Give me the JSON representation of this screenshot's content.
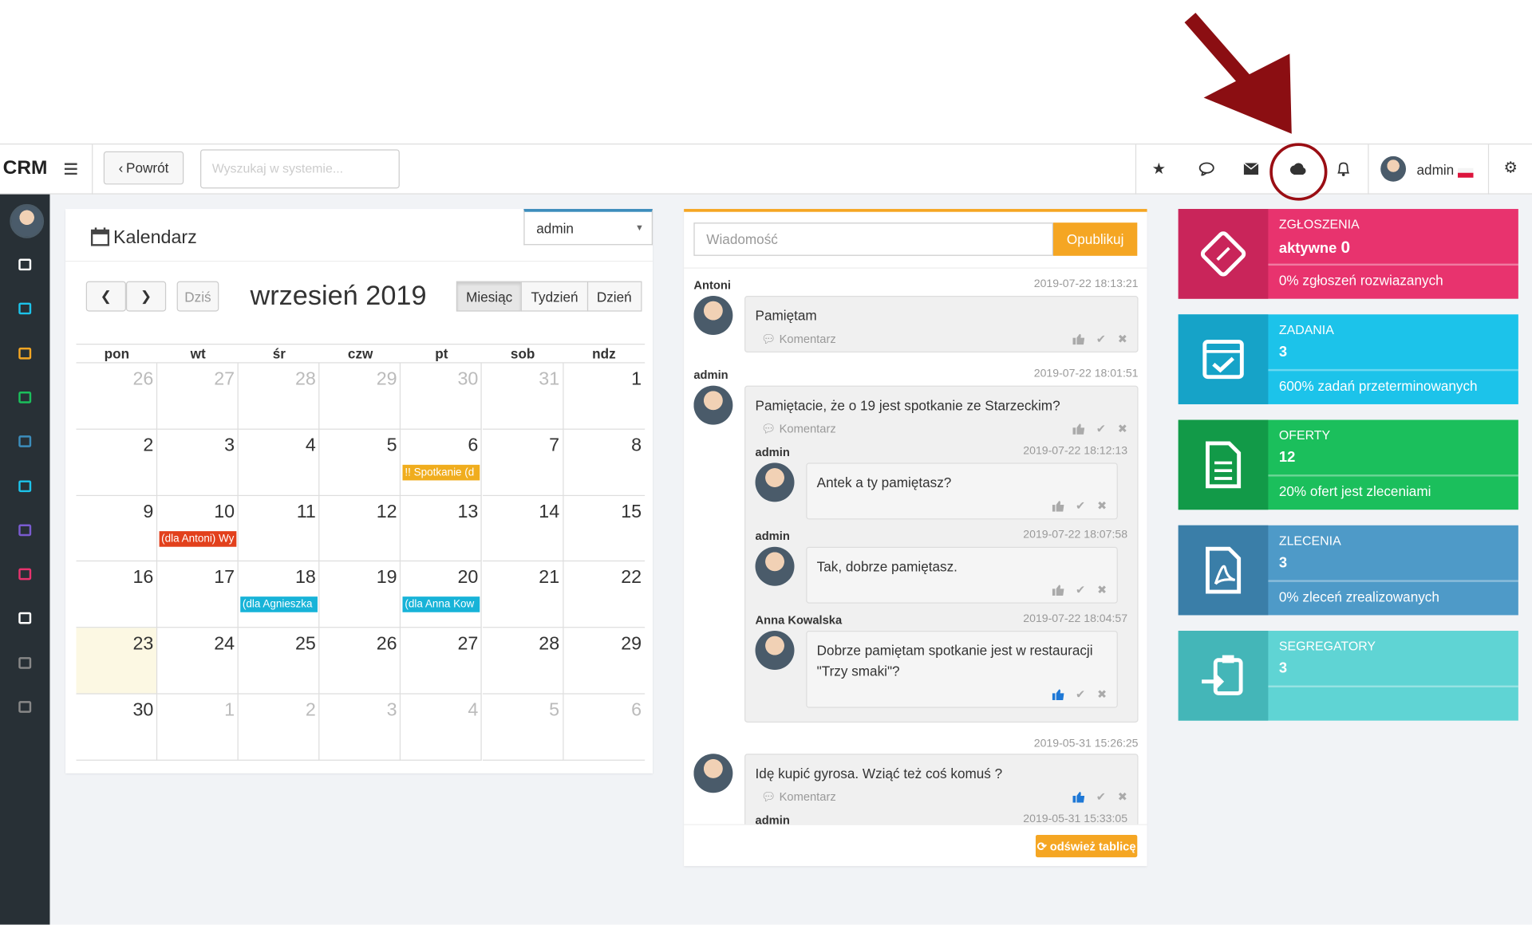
{
  "header": {
    "brand": "CRM",
    "back": "Powrót",
    "search_placeholder": "Wyszukaj w systemie...",
    "user": "admin"
  },
  "calendar": {
    "title": "Kalendarz",
    "user_select": "admin",
    "today_button": "Dziś",
    "month": "wrzesień 2019",
    "views": [
      "Miesiąc",
      "Tydzień",
      "Dzień"
    ],
    "weekdays": [
      "pon",
      "wt",
      "śr",
      "czw",
      "pt",
      "sob",
      "ndz"
    ],
    "weeks": [
      [
        26,
        27,
        28,
        29,
        30,
        31,
        1
      ],
      [
        2,
        3,
        4,
        5,
        6,
        7,
        8
      ],
      [
        9,
        10,
        11,
        12,
        13,
        14,
        15
      ],
      [
        16,
        17,
        18,
        19,
        20,
        21,
        22
      ],
      [
        23,
        24,
        25,
        26,
        27,
        28,
        29
      ],
      [
        30,
        1,
        2,
        3,
        4,
        5,
        6
      ]
    ],
    "today": 23,
    "events": [
      {
        "day": 6,
        "text": "!! Spotkanie (d",
        "color": "#f0ad1e"
      },
      {
        "day": 10,
        "text": "(dla Antoni) Wy",
        "color": "#e2401c"
      },
      {
        "day": 18,
        "text": "(dla Agnieszka",
        "color": "#17b3d8"
      },
      {
        "day": 20,
        "text": "(dla Anna Kow",
        "color": "#17b3d8"
      }
    ]
  },
  "wall": {
    "placeholder": "Wiadomość",
    "publish": "Opublikuj",
    "comment_label": "Komentarz",
    "refresh": "odśwież tablicę",
    "posts": [
      {
        "author": "Antoni",
        "date": "2019-07-22 18:13:21",
        "text": "Pamiętam",
        "liked": false,
        "replies": []
      },
      {
        "author": "admin",
        "date": "2019-07-22 18:01:51",
        "text": "Pamiętacie, że o 19 jest spotkanie ze Starzeckim?",
        "liked": false,
        "replies": [
          {
            "author": "admin",
            "date": "2019-07-22 18:12:13",
            "text": "Antek a ty pamiętasz?",
            "liked": false
          },
          {
            "author": "admin",
            "date": "2019-07-22 18:07:58",
            "text": "Tak, dobrze pamiętasz.",
            "liked": false
          },
          {
            "author": "Anna Kowalska",
            "date": "2019-07-22 18:04:57",
            "text": "Dobrze pamiętam spotkanie jest w restauracji \"Trzy smaki\"?",
            "liked": true
          }
        ]
      },
      {
        "date": "2019-05-31 15:26:25",
        "text": "Idę kupić gyrosa. Wziąć też coś komuś ?",
        "liked": true,
        "replies": [
          {
            "author": "admin",
            "date": "2019-05-31 15:33:05"
          }
        ]
      }
    ]
  },
  "tiles": [
    {
      "title": "ZGŁOSZENIA",
      "label": "aktywne",
      "value": 0,
      "footer": "0% zgłoszeń rozwiazanych",
      "color": "#e8336e",
      "dark": "#c9255a"
    },
    {
      "title": "ZADANIA",
      "value": 3,
      "footer": "600% zadań przeterminowanych",
      "color": "#1cc3ea",
      "dark": "#16a3c8"
    },
    {
      "title": "OFERTY",
      "value": 12,
      "footer": "20% ofert jest zleceniami",
      "color": "#1bbf5c",
      "dark": "#129a48"
    },
    {
      "title": "ZLECENIA",
      "value": 3,
      "footer": "0% zleceń zrealizowanych",
      "color": "#4e9ac8",
      "dark": "#3a7ea8"
    },
    {
      "title": "SEGREGATORY",
      "value": 3,
      "color": "#5fd4d4",
      "dark": "#44b6b8"
    }
  ]
}
